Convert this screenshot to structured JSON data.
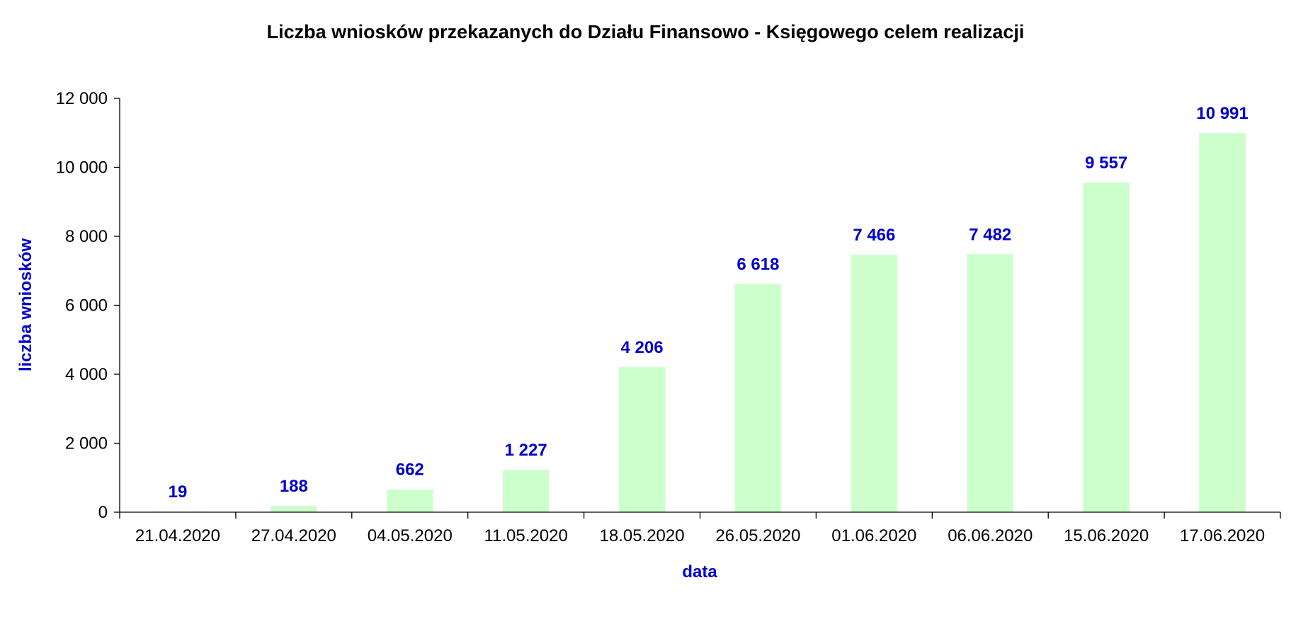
{
  "chart_data": {
    "type": "bar",
    "title": "Liczba wniosków przekazanych do Działu Finansowo - Księgowego celem realizacji",
    "xlabel": "data",
    "ylabel": "liczba wniosków",
    "categories": [
      "21.04.2020",
      "27.04.2020",
      "04.05.2020",
      "11.05.2020",
      "18.05.2020",
      "26.05.2020",
      "01.06.2020",
      "06.06.2020",
      "15.06.2020",
      "17.06.2020"
    ],
    "values": [
      19,
      188,
      662,
      1227,
      4206,
      6618,
      7466,
      7482,
      9557,
      10991
    ],
    "value_labels": [
      "19",
      "188",
      "662",
      "1 227",
      "4 206",
      "6 618",
      "7 466",
      "7 482",
      "9 557",
      "10 991"
    ],
    "ylim": [
      0,
      12000
    ],
    "yticks": [
      0,
      2000,
      4000,
      6000,
      8000,
      10000,
      12000
    ],
    "ytick_labels": [
      "0",
      "2 000",
      "4 000",
      "6 000",
      "8 000",
      "10 000",
      "12 000"
    ],
    "grid": false,
    "legend": "none",
    "bar_color": "#ccffcc",
    "label_color": "#0000cc",
    "axis_title_color": "#0000cc"
  }
}
